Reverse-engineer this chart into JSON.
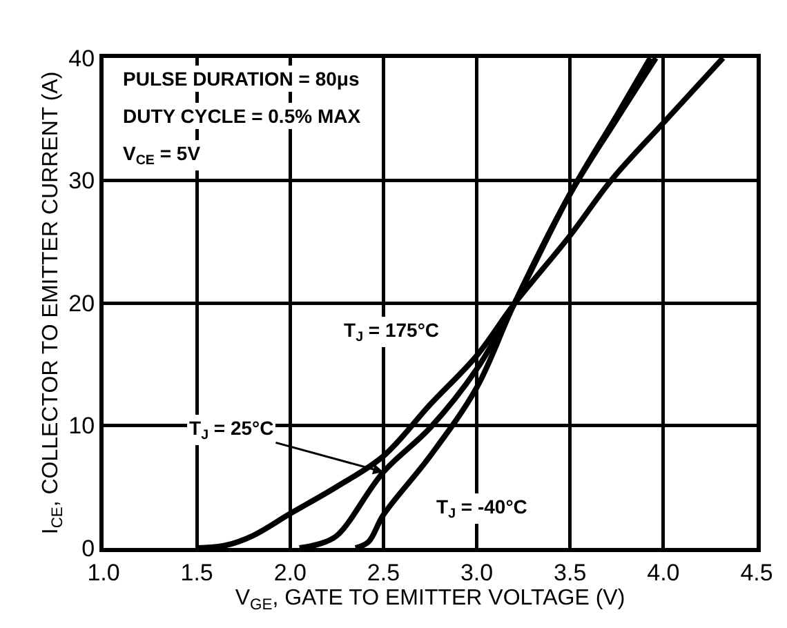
{
  "chart_data": {
    "type": "line",
    "xlabel": "V$_{GE}$, GATE TO EMITTER VOLTAGE (V)",
    "ylabel": "I$_{CE}$, COLLECTOR TO EMITTER CURRENT (A)",
    "xlim": [
      1.0,
      4.5
    ],
    "xticks": [
      {
        "value": 1,
        "label": "1.0"
      },
      {
        "value": 1.5,
        "label": "1.5"
      },
      {
        "value": 2,
        "label": "2.0"
      },
      {
        "value": 2.5,
        "label": "2.5"
      },
      {
        "value": 3,
        "label": "3.0"
      },
      {
        "value": 3.5,
        "label": "3.5"
      },
      {
        "value": 4,
        "label": "4.0"
      },
      {
        "value": 4.5,
        "label": "4.5"
      }
    ],
    "ylim": [
      0,
      40
    ],
    "yticks": [
      0,
      10,
      20,
      30,
      40
    ],
    "grid": true,
    "marker": "none",
    "line_style": "solid",
    "series": [
      {
        "color": "#000000",
        "x": [
          1.5,
          1.65,
          1.8,
          2.0,
          2.25,
          2.5,
          2.75,
          3.0,
          3.2,
          3.5,
          3.72,
          4.0,
          4.32
        ],
        "values": [
          0,
          0.2,
          1.0,
          2.8,
          5.0,
          7.5,
          11.7,
          15.7,
          19.9,
          25.5,
          30,
          34.7,
          40
        ]
      },
      {
        "color": "#000000",
        "x": [
          2.05,
          2.15,
          2.25,
          2.5,
          2.75,
          3.0,
          3.2,
          3.5,
          3.75,
          3.93
        ],
        "values": [
          0,
          0.3,
          1.0,
          6.2,
          9.8,
          14.6,
          19.9,
          28.9,
          35.3,
          40
        ]
      },
      {
        "color": "#000000",
        "x": [
          2.35,
          2.42,
          2.5,
          2.75,
          3.0,
          3.2,
          3.5,
          3.75,
          3.96
        ],
        "values": [
          0,
          0.5,
          2.7,
          7.5,
          13.1,
          19.9,
          28.9,
          35.0,
          40
        ]
      }
    ],
    "annotations": [
      "PULSE DURATION = 80μs",
      "DUTY CYCLE = 0.5% MAX",
      "V$_{CE}$ = 5V",
      "T$_{J}$ = 175°C",
      {
        "text": "T$_{J}$ = 25°C",
        "x": 2.5,
        "y": 6.2
      },
      "T$_{J}$ = -40°C"
    ]
  }
}
